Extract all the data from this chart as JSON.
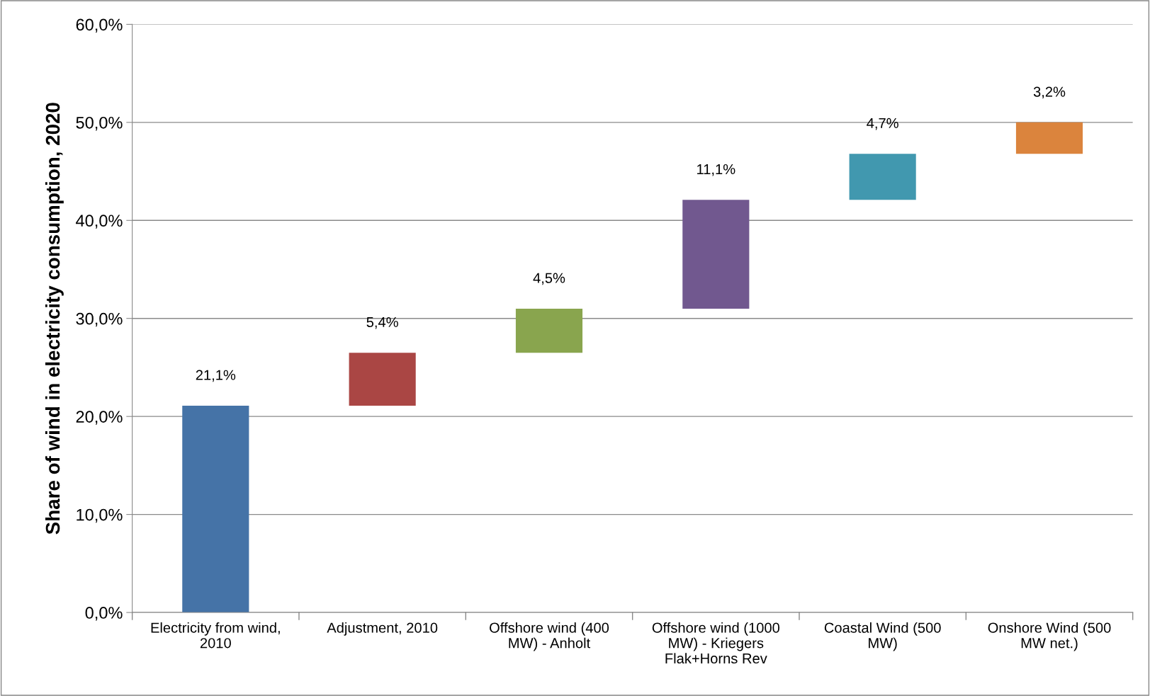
{
  "chart_data": {
    "type": "bar",
    "ylabel": "Share of wind in electricity consumption, 2020",
    "categories": [
      "Electricity from wind,\n2010",
      "Adjustment, 2010",
      "Offshore wind (400\nMW) - Anholt",
      "Offshore wind (1000\nMW) - Kriegers\nFlak+Horns Rev",
      "Coastal Wind (500\nMW)",
      "Onshore Wind (500\nMW net.)"
    ],
    "values": [
      21.1,
      5.4,
      4.5,
      11.1,
      4.7,
      3.2
    ],
    "base": [
      0,
      21.1,
      26.5,
      31.0,
      42.1,
      46.8
    ],
    "colors": [
      "#4573a7",
      "#aa4644",
      "#89a54e",
      "#71588f",
      "#4198af",
      "#db843d"
    ],
    "value_labels": [
      "21,1%",
      "5,4%",
      "4,5%",
      "11,1%",
      "4,7%",
      "3,2%"
    ],
    "ylim": [
      0,
      60
    ],
    "yticks": [
      {
        "value": 0,
        "label": "0,0%"
      },
      {
        "value": 10,
        "label": "10,0%"
      },
      {
        "value": 20,
        "label": "20,0%"
      },
      {
        "value": 30,
        "label": "30,0%"
      },
      {
        "value": 40,
        "label": "40,0%"
      },
      {
        "value": 50,
        "label": "50,0%"
      },
      {
        "value": 60,
        "label": "60,0%"
      }
    ],
    "grid": "y",
    "legend": false
  }
}
